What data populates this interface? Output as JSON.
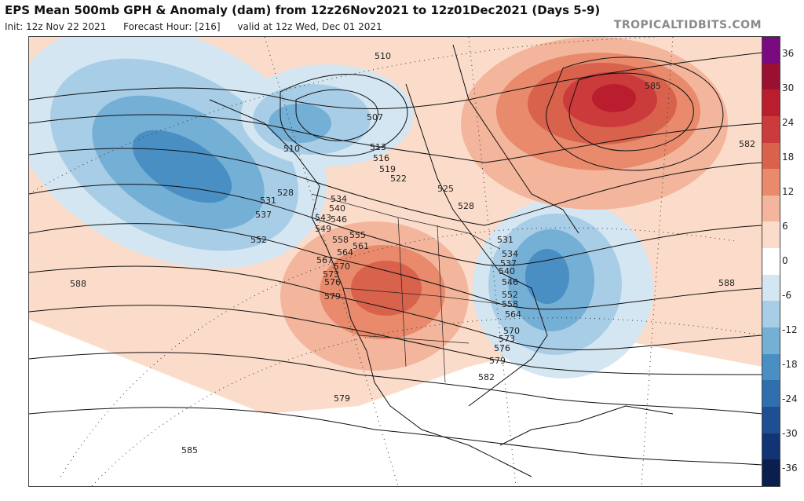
{
  "header": {
    "title": "EPS Mean 500mb GPH & Anomaly (dam) from 12z26Nov2021 to 12z01Dec2021 (Days 5-9)",
    "init": "Init: 12z Nov 22 2021",
    "forecast_hour": "Forecast Hour: [216]",
    "valid": "valid at 12z Wed, Dec 01 2021",
    "brand": "TROPICALTIDBITS.COM"
  },
  "colorbar": {
    "ticks": [
      "36",
      "30",
      "24",
      "18",
      "12",
      "6",
      "0",
      "-6",
      "-12",
      "-18",
      "-24",
      "-30",
      "-36"
    ],
    "colors": [
      "#7a0a80",
      "#9a1030",
      "#b91d2e",
      "#cc3b3b",
      "#d9624d",
      "#e88a6b",
      "#f3b59b",
      "#fbdcca",
      "#ffffff",
      "#d4e6f2",
      "#a8cde6",
      "#74afd6",
      "#4a8fc4",
      "#2f6fae",
      "#1d4f92",
      "#113574",
      "#0a1f4e"
    ]
  },
  "map_labels": {
    "contours": [
      "510",
      "507",
      "510",
      "513",
      "516",
      "519",
      "522",
      "525",
      "528",
      "528",
      "531",
      "531",
      "534",
      "534",
      "537",
      "537",
      "540",
      "540",
      "543",
      "546",
      "546",
      "549",
      "552",
      "552",
      "555",
      "558",
      "558",
      "561",
      "564",
      "564",
      "567",
      "570",
      "570",
      "573",
      "573",
      "576",
      "576",
      "579",
      "579",
      "579",
      "582",
      "582",
      "585",
      "585",
      "588",
      "588"
    ]
  }
}
